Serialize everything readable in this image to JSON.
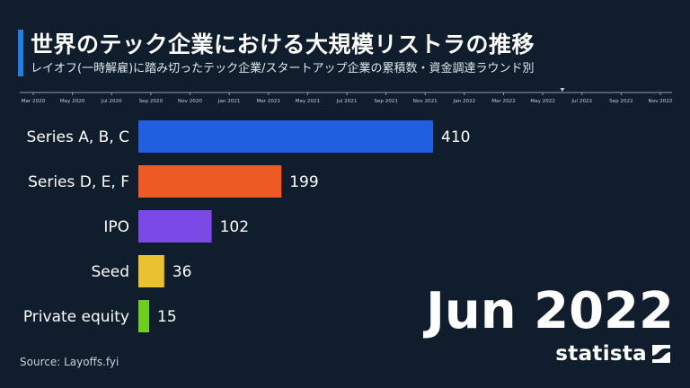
{
  "header": {
    "title": "世界のテック企業における大規模リストラの推移",
    "subtitle": "レイオフ(一時解雇)に踏み切ったテック企業/スタートアップ企業の累積数・資金調達ラウンド別"
  },
  "timeline": {
    "ticks": [
      "Mar 2020",
      "May 2020",
      "Jul 2020",
      "Sep 2020",
      "Nov 2020",
      "Jan 2021",
      "Mar 2021",
      "May 2021",
      "Jul 2021",
      "Sep 2021",
      "Nov 2021",
      "Jan 2022",
      "Mar 2022",
      "May 2022",
      "Jul 2022",
      "Sep 2022",
      "Nov 2022"
    ],
    "current_index": 13.5
  },
  "current_period": "Jun 2022",
  "source": "Source: Layoffs.fyi",
  "brand": "statista",
  "colors": {
    "background": "#0f1d2c",
    "accent": "#1f7fe3"
  },
  "chart_data": {
    "type": "bar",
    "orientation": "horizontal",
    "categories": [
      "Series A, B, C",
      "Series D, E, F",
      "IPO",
      "Seed",
      "Private equity"
    ],
    "values": [
      410,
      199,
      102,
      36,
      15
    ],
    "colors": [
      "#1f5fe0",
      "#ee5a24",
      "#7b4ae6",
      "#e8c230",
      "#6fcf1e"
    ],
    "xlim": [
      0,
      410
    ]
  }
}
